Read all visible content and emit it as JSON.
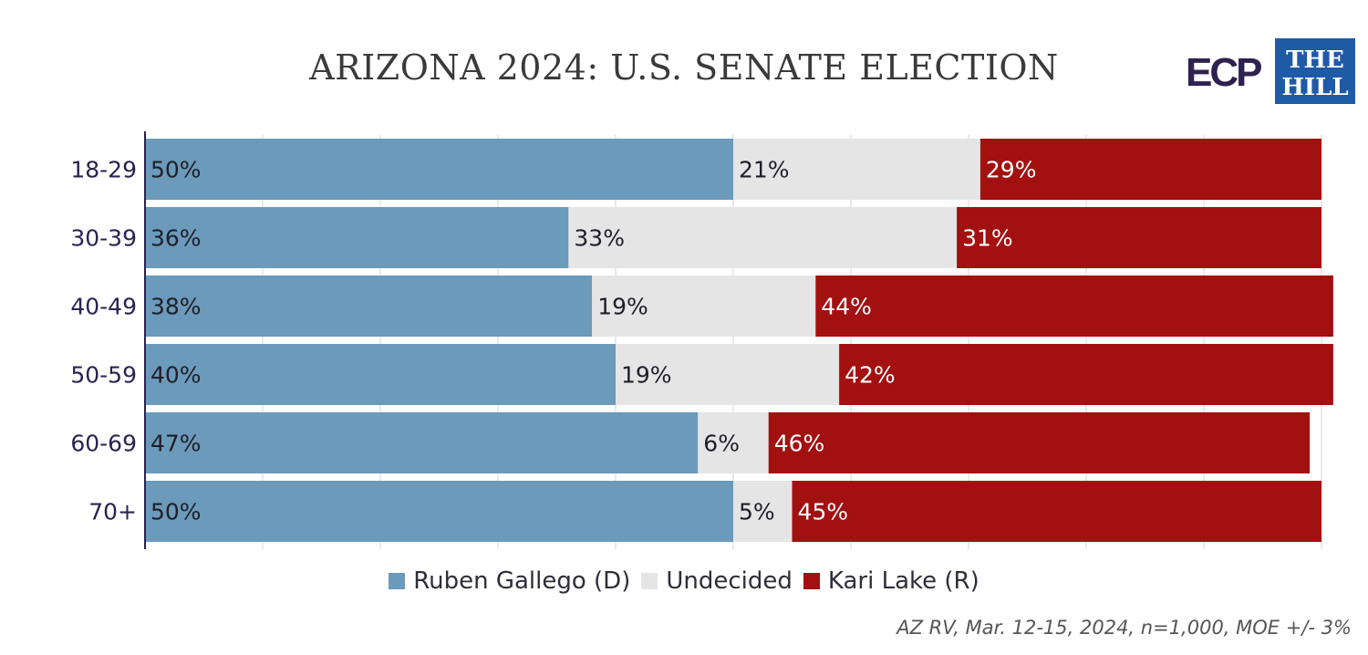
{
  "chart_data": {
    "type": "bar",
    "orientation": "horizontal",
    "stacked": true,
    "title": "ARIZONA 2024: U.S. SENATE ELECTION",
    "categories": [
      "18-29",
      "30-39",
      "40-49",
      "50-59",
      "60-69",
      "70+"
    ],
    "series": [
      {
        "name": "Ruben Gallego (D)",
        "values": [
          50,
          36,
          38,
          40,
          47,
          50
        ],
        "labels": [
          "50%",
          "36%",
          "38%",
          "40%",
          "47%",
          "50%"
        ],
        "color": "#6b9aba",
        "label_color": "#1f1f2a"
      },
      {
        "name": "Undecided",
        "values": [
          21,
          33,
          19,
          19,
          6,
          5
        ],
        "labels": [
          "21%",
          "33%",
          "19%",
          "19%",
          "6%",
          "5%"
        ],
        "color": "#e5e5e5",
        "label_color": "#1f1f2a"
      },
      {
        "name": "Kari Lake (R)",
        "values": [
          29,
          31,
          44,
          42,
          46,
          45
        ],
        "labels": [
          "29%",
          "31%",
          "44%",
          "42%",
          "46%",
          "45%"
        ],
        "color": "#a31010",
        "label_color": "#ffffff"
      }
    ],
    "xlim": [
      0,
      100
    ],
    "grid": true,
    "legend_position": "bottom"
  },
  "source_note": "AZ RV, Mar. 12-15, 2024, n=1,000, MOE +/- 3%",
  "logos": {
    "ecp": "ECP",
    "hill_line1": "THE",
    "hill_line2": "HILL"
  },
  "colors": {
    "title": "#3a3a3a",
    "axis": "#2a2450",
    "grid": "#d4d4d4",
    "ecp": "#2f2150",
    "hill_blue": "#1f5aa6"
  }
}
